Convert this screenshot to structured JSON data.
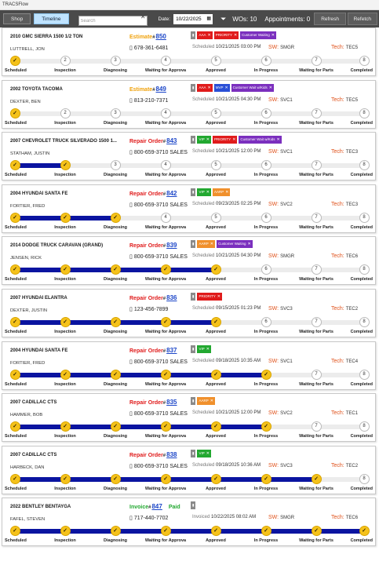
{
  "window_title": "TRACSFlow",
  "toolbar": {
    "shop_label": "Shop",
    "timeline_label": "Timeline",
    "search_placeholder": "Search",
    "date_label": "Date:",
    "date_value": "10/22/2025",
    "wos": "WOs: 10",
    "appointments": "Appointments: 0",
    "refresh_label": "Refresh",
    "refetch_label": "Refetch"
  },
  "colors": {
    "estimate": "#f0a20c",
    "repair_order": "#e01b1b",
    "invoice": "#22a830",
    "progress_fill": "#0a14a0",
    "done_circle": "#f5c21a"
  },
  "stages": [
    "Scheduled",
    "Inspection",
    "Diagnosing",
    "Waiting for Approva",
    "Approved",
    "In Progress",
    "Waiting for Parts",
    "Completed"
  ],
  "workorders": [
    {
      "vehicle": "2010 GMC SIERRA 1500 1/2 TON",
      "customer": "LUTTRELL, JON",
      "order_type": "Estimate",
      "order_num": "850",
      "paid": "",
      "phone": "678-361-6481",
      "sched_label": "Scheduled",
      "sched_dt": "10/21/2025 03:00 PM",
      "sw_label": "SW:",
      "sw": "SMGR",
      "tech_label": "Tech:",
      "tech": "TEC5",
      "progress": 0,
      "tags": [
        {
          "label": "",
          "color": "#8a8a8a",
          "x": false
        },
        {
          "label": "AAA",
          "color": "#e01b1b",
          "x": true
        },
        {
          "label": "PRIORITY",
          "color": "#e01b1b",
          "x": true
        },
        {
          "label": "Customer Waiting",
          "color": "#7b2fbe",
          "x": true
        }
      ]
    },
    {
      "vehicle": "2002 TOYOTA TACOMA",
      "customer": "DEXTER, BEN",
      "order_type": "Estimate",
      "order_num": "849",
      "paid": "",
      "phone": "813-210-7371",
      "sched_label": "Scheduled",
      "sched_dt": "10/21/2025 04:30 PM",
      "sw_label": "SW:",
      "sw": "SVC1",
      "tech_label": "Tech:",
      "tech": "TEC5",
      "progress": 0,
      "tags": [
        {
          "label": "",
          "color": "#8a8a8a",
          "x": false
        },
        {
          "label": "AAA",
          "color": "#e01b1b",
          "x": true
        },
        {
          "label": "MVP",
          "color": "#2a4fd6",
          "x": true
        },
        {
          "label": "Customer Wait w/Kids",
          "color": "#7b2fbe",
          "x": true
        }
      ]
    },
    {
      "vehicle": "2007 CHEVROLET TRUCK SILVERADO 1500 1...",
      "customer": "STATHAM, JUSTIN",
      "order_type": "Repair Order",
      "order_num": "843",
      "paid": "",
      "phone": "800-659-3710 SALES",
      "sched_label": "Scheduled",
      "sched_dt": "10/21/2025 12:00 PM",
      "sw_label": "SW:",
      "sw": "SVC1",
      "tech_label": "Tech:",
      "tech": "TEC3",
      "progress": 1,
      "tags": [
        {
          "label": "",
          "color": "#8a8a8a",
          "x": false
        },
        {
          "label": "VIP",
          "color": "#22a830",
          "x": true
        },
        {
          "label": "PRIORITY",
          "color": "#e01b1b",
          "x": true
        },
        {
          "label": "Customer Wait w/Kids",
          "color": "#7b2fbe",
          "x": true
        }
      ]
    },
    {
      "vehicle": "2004 HYUNDAI SANTA FE",
      "customer": "FORTIER, FRED",
      "order_type": "Repair Order",
      "order_num": "842",
      "paid": "",
      "phone": "800-659-3710 SALES",
      "sched_label": "Scheduled",
      "sched_dt": "09/23/2025 02:25 PM",
      "sw_label": "SW:",
      "sw": "SVC2",
      "tech_label": "Tech:",
      "tech": "TEC3",
      "progress": 2,
      "tags": [
        {
          "label": "",
          "color": "#8a8a8a",
          "x": false
        },
        {
          "label": "VIP",
          "color": "#22a830",
          "x": true
        },
        {
          "label": "AARP",
          "color": "#f0902c",
          "x": true
        }
      ]
    },
    {
      "vehicle": "2014 DODGE TRUCK CARAVAN (GRAND)",
      "customer": "JENSEN, RICK",
      "order_type": "Repair Order",
      "order_num": "839",
      "paid": "",
      "phone": "800-659-3710 SALES",
      "sched_label": "Scheduled",
      "sched_dt": "10/21/2025 04:30 PM",
      "sw_label": "SW:",
      "sw": "SMGR",
      "tech_label": "Tech:",
      "tech": "TEC6",
      "progress": 4,
      "tags": [
        {
          "label": "",
          "color": "#8a8a8a",
          "x": false
        },
        {
          "label": "AARP",
          "color": "#f0902c",
          "x": true
        },
        {
          "label": "Customer Waiting",
          "color": "#7b2fbe",
          "x": true
        }
      ]
    },
    {
      "vehicle": "2007 HYUNDAI ELANTRA",
      "customer": "DEXTER, JUSTIN",
      "order_type": "Repair Order",
      "order_num": "836",
      "paid": "",
      "phone": "123-456-7899",
      "sched_label": "Scheduled",
      "sched_dt": "09/15/2025 01:23 PM",
      "sw_label": "SW:",
      "sw": "SVC3",
      "tech_label": "Tech:",
      "tech": "TEC2",
      "progress": 4,
      "tags": [
        {
          "label": "",
          "color": "#8a8a8a",
          "x": false
        },
        {
          "label": "PRIORITY",
          "color": "#e01b1b",
          "x": true
        }
      ]
    },
    {
      "vehicle": "2004 HYUNDAI SANTA FE",
      "customer": "FORTIER, FRED",
      "order_type": "Repair Order",
      "order_num": "837",
      "paid": "",
      "phone": "800-659-3710 SALES",
      "sched_label": "Scheduled",
      "sched_dt": "09/18/2025 10:35 AM",
      "sw_label": "SW:",
      "sw": "SVC1",
      "tech_label": "Tech:",
      "tech": "TEC4",
      "progress": 5,
      "tags": [
        {
          "label": "",
          "color": "#8a8a8a",
          "x": false
        },
        {
          "label": "VIP",
          "color": "#22a830",
          "x": true
        }
      ]
    },
    {
      "vehicle": "2007 CADILLAC CTS",
      "customer": "HAMMER, BOB",
      "order_type": "Repair Order",
      "order_num": "835",
      "paid": "",
      "phone": "800-659-3710 SALES",
      "sched_label": "Scheduled",
      "sched_dt": "10/21/2025 12:00 PM",
      "sw_label": "SW:",
      "sw": "SVC2",
      "tech_label": "Tech:",
      "tech": "TEC1",
      "progress": 5,
      "tags": [
        {
          "label": "",
          "color": "#8a8a8a",
          "x": false
        },
        {
          "label": "AARP",
          "color": "#f0902c",
          "x": true
        }
      ]
    },
    {
      "vehicle": "2007 CADILLAC CTS",
      "customer": "HARBECK, DAN",
      "order_type": "Repair Order",
      "order_num": "838",
      "paid": "",
      "phone": "800-659-3710 SALES",
      "sched_label": "Scheduled",
      "sched_dt": "09/18/2025 10:36 AM",
      "sw_label": "SW:",
      "sw": "SVC3",
      "tech_label": "Tech:",
      "tech": "TEC2",
      "progress": 6,
      "tags": [
        {
          "label": "",
          "color": "#8a8a8a",
          "x": false
        },
        {
          "label": "VIP",
          "color": "#22a830",
          "x": true
        }
      ]
    },
    {
      "vehicle": "2022 BENTLEY BENTAYGA",
      "customer": "FAFEL, STEVEN",
      "order_type": "Invoice",
      "order_num": "847",
      "paid": "Paid",
      "phone": "717-440-7702",
      "sched_label": "Invoiced",
      "sched_dt": "10/22/2025 08:02 AM",
      "sw_label": "SW:",
      "sw": "SMGR",
      "tech_label": "Tech:",
      "tech": "TEC6",
      "progress": 7,
      "tags": [
        {
          "label": "",
          "color": "#8a8a8a",
          "x": false
        }
      ]
    }
  ]
}
